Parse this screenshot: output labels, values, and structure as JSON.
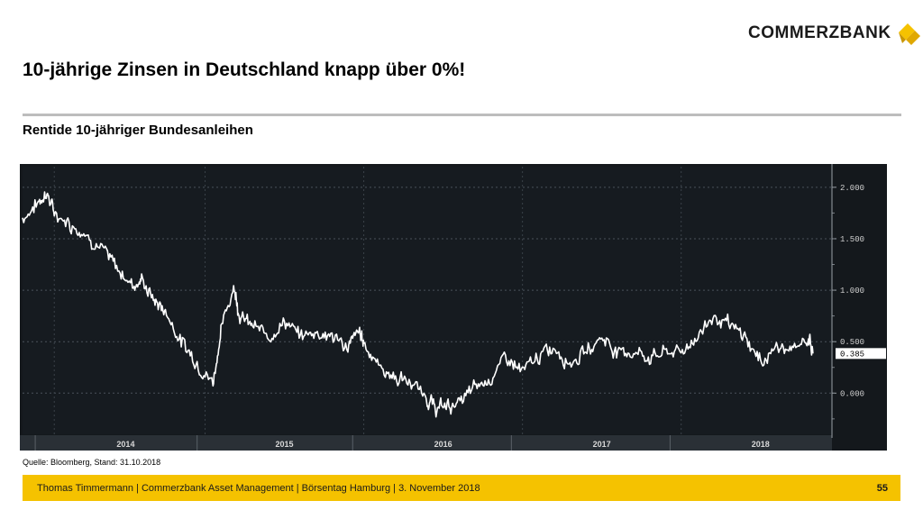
{
  "header": {
    "logo_text": "COMMERZBANK",
    "title": "10-jährige Zinsen in Deutschland knapp über 0%!",
    "subtitle": "Rentide 10-jähriger Bundesanleihen"
  },
  "source": "Quelle: Bloomberg, Stand: 31.10.2018",
  "footer": {
    "text": "Thomas Timmermann | Commerzbank Asset Management | Börsentag Hamburg | 3. November 2018",
    "page": "55"
  },
  "colors": {
    "accent": "#f5c200",
    "chart_background": "#14181c",
    "series_line": "#ffffff",
    "last_value_box": "#ffffff"
  },
  "chart_data": {
    "type": "line",
    "title": "",
    "xlabel": "",
    "ylabel": "",
    "ylim": [
      -0.4,
      2.2
    ],
    "xlim": [
      2013.85,
      2018.95
    ],
    "y_ticks": [
      "2.000",
      "1.500",
      "1.000",
      "0.500",
      "0.000"
    ],
    "y_tick_values": [
      2.0,
      1.5,
      1.0,
      0.5,
      0.0
    ],
    "x_ticks": [
      "2014",
      "2015",
      "2016",
      "2017",
      "2018"
    ],
    "x_tick_positions": [
      2014.0,
      2015.0,
      2016.0,
      2017.0,
      2018.0
    ],
    "grid": true,
    "legend": "none",
    "last_value_label": "0.385",
    "series": [
      {
        "name": "",
        "x": [
          2013.85,
          2013.95,
          2014.0,
          2014.05,
          2014.15,
          2014.25,
          2014.35,
          2014.45,
          2014.55,
          2014.6,
          2014.68,
          2014.75,
          2014.85,
          2014.95,
          2015.05,
          2015.1,
          2015.18,
          2015.22,
          2015.3,
          2015.4,
          2015.5,
          2015.6,
          2015.7,
          2015.8,
          2015.9,
          2015.97,
          2016.0,
          2016.1,
          2016.2,
          2016.3,
          2016.4,
          2016.45,
          2016.52,
          2016.6,
          2016.7,
          2016.8,
          2016.9,
          2017.0,
          2017.1,
          2017.2,
          2017.3,
          2017.4,
          2017.5,
          2017.6,
          2017.7,
          2017.8,
          2017.9,
          2018.0,
          2018.1,
          2018.2,
          2018.3,
          2018.4,
          2018.5,
          2018.6,
          2018.7,
          2018.8,
          2018.83
        ],
        "values": [
          1.7,
          1.85,
          1.95,
          1.75,
          1.65,
          1.55,
          1.4,
          1.2,
          1.05,
          1.1,
          0.9,
          0.8,
          0.5,
          0.3,
          0.1,
          0.6,
          1.05,
          0.75,
          0.65,
          0.55,
          0.7,
          0.55,
          0.6,
          0.55,
          0.45,
          0.6,
          0.5,
          0.25,
          0.15,
          0.1,
          -0.05,
          -0.15,
          -0.12,
          -0.1,
          0.05,
          0.15,
          0.35,
          0.2,
          0.35,
          0.45,
          0.3,
          0.4,
          0.55,
          0.4,
          0.4,
          0.35,
          0.4,
          0.4,
          0.55,
          0.75,
          0.65,
          0.55,
          0.3,
          0.45,
          0.4,
          0.55,
          0.385
        ]
      }
    ]
  }
}
